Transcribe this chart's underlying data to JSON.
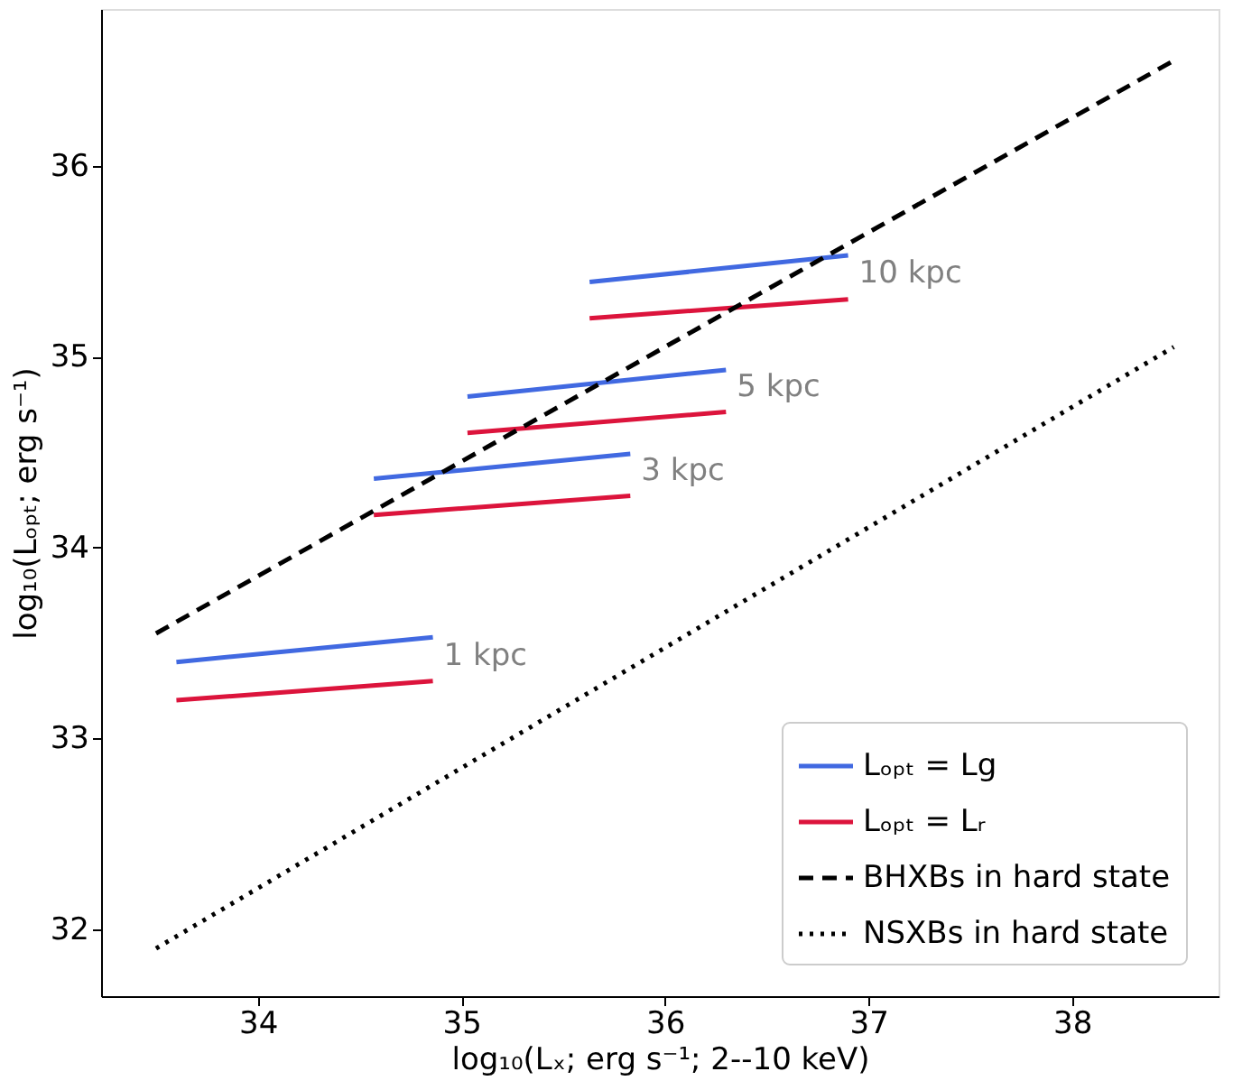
{
  "chart_data": {
    "type": "line",
    "xlabel": "log₁₀(Lₓ; erg s⁻¹; 2--10 keV)",
    "ylabel": "log₁₀(Lₒₚₜ; erg s⁻¹)",
    "series": [
      {
        "name": "Lₒₚₜ = Lg",
        "color": "#4169e1",
        "line_style": "solid",
        "x": [
          33.6,
          34.86,
          null,
          34.57,
          35.83,
          null,
          35.03,
          36.3,
          null,
          35.63,
          36.9
        ],
        "values": [
          33.4,
          33.53,
          null,
          34.36,
          34.49,
          null,
          34.79,
          34.93,
          null,
          35.39,
          35.53
        ]
      },
      {
        "name": "Lₒₚₜ = Lᵣ",
        "color": "#dc143c",
        "line_style": "solid",
        "x": [
          33.6,
          34.86,
          null,
          34.57,
          35.83,
          null,
          35.03,
          36.3,
          null,
          35.63,
          36.9
        ],
        "values": [
          33.2,
          33.3,
          null,
          34.17,
          34.27,
          null,
          34.6,
          34.71,
          null,
          35.2,
          35.3
        ]
      },
      {
        "name": "BHXBs in hard state",
        "color": "#000000",
        "line_style": "dashed",
        "x": [
          33.5,
          38.5
        ],
        "values": [
          33.55,
          36.55
        ]
      },
      {
        "name": "NSXBs in hard state",
        "color": "#000000",
        "line_style": "dotted",
        "x": [
          33.5,
          38.5
        ],
        "values": [
          31.9,
          35.05
        ]
      }
    ],
    "annotations": [
      "1 kpc",
      "3 kpc",
      "5 kpc",
      "10 kpc"
    ],
    "xlim": [
      33.23,
      38.72
    ],
    "ylim": [
      31.65,
      36.82
    ],
    "xticks": [
      34,
      35,
      36,
      37,
      38
    ],
    "yticks": [
      32,
      33,
      34,
      35,
      36
    ],
    "grid": false,
    "legend": "bottom right",
    "marker": "none"
  }
}
